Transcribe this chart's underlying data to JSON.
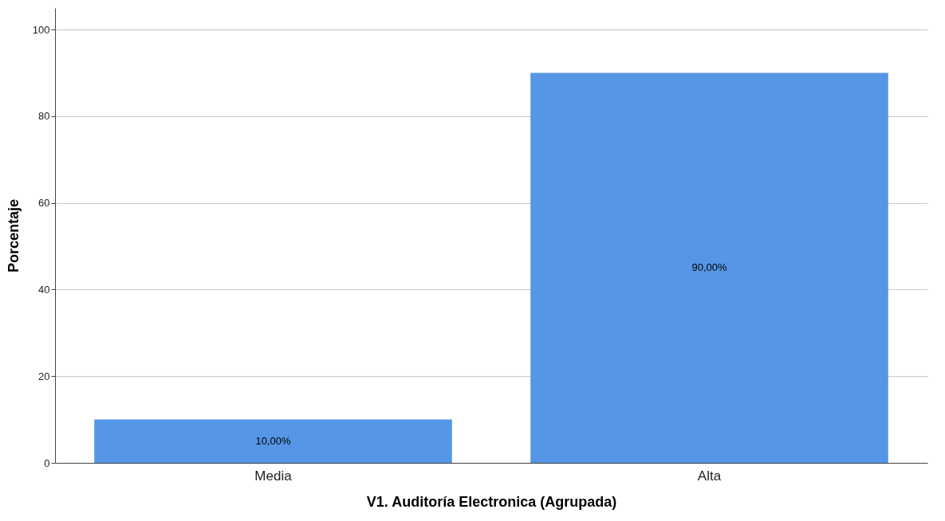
{
  "chart_data": {
    "type": "bar",
    "xlabel": "V1. Auditoría Electronica (Agrupada)",
    "ylabel": "Porcentaje",
    "categories": [
      "Media",
      "Alta"
    ],
    "values": [
      10,
      90
    ],
    "value_labels": [
      "10,00%",
      "90,00%"
    ],
    "color": "#5596e6",
    "ylim": [
      0,
      105
    ],
    "yticks": [
      0,
      20,
      40,
      60,
      80,
      100
    ],
    "grid": "y"
  }
}
